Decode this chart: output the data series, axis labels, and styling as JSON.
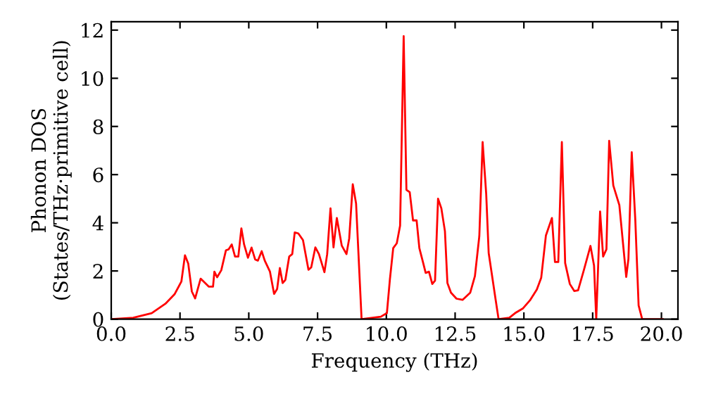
{
  "chart_data": {
    "type": "line",
    "xlabel": "Frequency (THz)",
    "ylabel": "Phonon DOS\n(States/THz·primitive cell)",
    "xlim": [
      0,
      20.6
    ],
    "ylim": [
      0,
      12.35
    ],
    "xticks": [
      {
        "value": 0,
        "label": "0.0"
      },
      {
        "value": 2.5,
        "label": "2.5"
      },
      {
        "value": 5,
        "label": "5.0"
      },
      {
        "value": 7.5,
        "label": "7.5"
      },
      {
        "value": 10,
        "label": "10.0"
      },
      {
        "value": 12.5,
        "label": "12.5"
      },
      {
        "value": 15,
        "label": "15.0"
      },
      {
        "value": 17.5,
        "label": "17.5"
      },
      {
        "value": 20,
        "label": "20.0"
      }
    ],
    "yticks": [
      0,
      2,
      4,
      6,
      8,
      10,
      12
    ],
    "grid": false,
    "legend": false,
    "marker": "none",
    "line_style": "solid",
    "series": [
      {
        "color": "#ff0000",
        "x": [
          0,
          0.8,
          1.47,
          1.97,
          2.3,
          2.55,
          2.68,
          2.8,
          2.93,
          3.05,
          3.25,
          3.55,
          3.7,
          3.75,
          3.85,
          4.0,
          4.17,
          4.27,
          4.38,
          4.5,
          4.62,
          4.73,
          4.83,
          4.97,
          5.1,
          5.23,
          5.33,
          5.47,
          5.58,
          5.77,
          5.92,
          6.03,
          6.13,
          6.23,
          6.33,
          6.47,
          6.58,
          6.67,
          6.8,
          6.97,
          7.17,
          7.27,
          7.42,
          7.55,
          7.75,
          7.85,
          7.97,
          8.08,
          8.2,
          8.38,
          8.55,
          8.65,
          8.78,
          8.9,
          9.1,
          9.8,
          10.02,
          10.13,
          10.25,
          10.38,
          10.5,
          10.63,
          10.73,
          10.85,
          10.97,
          11.1,
          11.2,
          11.33,
          11.43,
          11.55,
          11.67,
          11.77,
          11.88,
          12.0,
          12.13,
          12.22,
          12.35,
          12.55,
          12.77,
          13.05,
          13.22,
          13.38,
          13.5,
          13.63,
          13.72,
          13.97,
          14.08,
          14.47,
          14.68,
          14.97,
          15.22,
          15.47,
          15.63,
          15.8,
          16.02,
          16.13,
          16.25,
          16.38,
          16.5,
          16.67,
          16.83,
          16.97,
          17.18,
          17.42,
          17.55,
          17.63,
          17.77,
          17.88,
          18.0,
          18.1,
          18.25,
          18.47,
          18.72,
          18.8,
          18.92,
          19.05,
          19.17,
          19.3,
          20.05
        ],
        "values": [
          0,
          0.06,
          0.25,
          0.64,
          1.03,
          1.56,
          2.65,
          2.3,
          1.15,
          0.86,
          1.68,
          1.35,
          1.35,
          1.97,
          1.74,
          2.03,
          2.86,
          2.9,
          3.1,
          2.6,
          2.6,
          3.77,
          3.1,
          2.55,
          2.97,
          2.48,
          2.43,
          2.82,
          2.43,
          1.97,
          1.05,
          1.25,
          2.12,
          1.5,
          1.63,
          2.6,
          2.7,
          3.6,
          3.56,
          3.28,
          2.05,
          2.15,
          2.98,
          2.7,
          1.95,
          2.7,
          4.6,
          2.98,
          4.2,
          3.05,
          2.7,
          3.35,
          5.6,
          4.8,
          0,
          0.1,
          0.25,
          1.66,
          2.95,
          3.15,
          3.88,
          11.75,
          5.37,
          5.27,
          4.1,
          4.1,
          2.95,
          2.37,
          1.92,
          1.97,
          1.46,
          1.6,
          5.0,
          4.6,
          3.65,
          1.5,
          1.1,
          0.85,
          0.8,
          1.1,
          1.79,
          3.45,
          7.35,
          5.2,
          2.75,
          0.83,
          0,
          0.06,
          0.25,
          0.45,
          0.78,
          1.23,
          1.72,
          3.47,
          4.2,
          2.37,
          2.37,
          7.35,
          2.33,
          1.46,
          1.17,
          1.2,
          2.04,
          3.04,
          2.22,
          0,
          4.47,
          2.6,
          2.9,
          7.4,
          5.55,
          4.73,
          1.75,
          2.5,
          6.93,
          4.11,
          0.57,
          0,
          0
        ]
      }
    ]
  }
}
